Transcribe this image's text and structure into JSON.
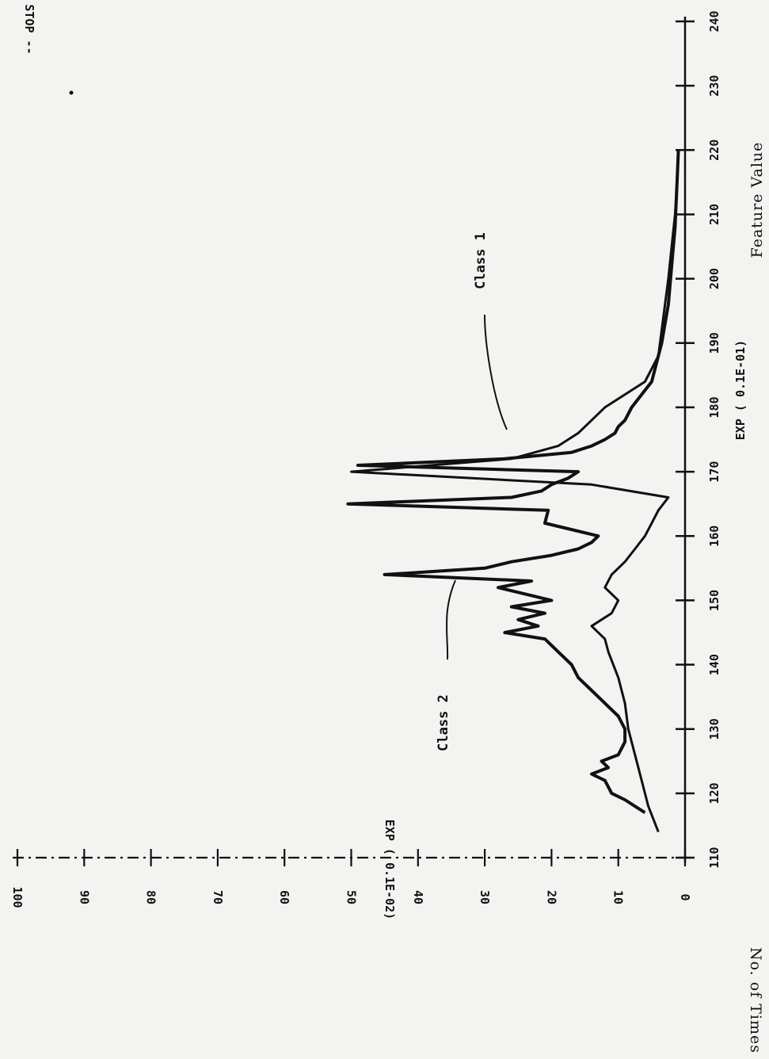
{
  "chart_data": {
    "type": "line",
    "title": "",
    "xlabel": "Feature Value",
    "ylabel": "No. of Times",
    "x_scale_note": "EXP ( 0.1E-01)",
    "y_scale_note": "EXP ( 0.1E-02)",
    "stop_label": "STOP --",
    "xlim": [
      110,
      240
    ],
    "ylim": [
      0,
      100
    ],
    "x_ticks": [
      "110",
      "120",
      "130",
      "140",
      "150",
      "160",
      "170",
      "180",
      "190",
      "200",
      "210",
      "220",
      "230",
      "240"
    ],
    "y_ticks": [
      "0",
      "10",
      "20",
      "30",
      "40",
      "50",
      "60",
      "70",
      "80",
      "90",
      "100"
    ],
    "grid": false,
    "colors": {
      "ink": "#111111",
      "paper": "#f3f3f1"
    },
    "series": [
      {
        "name": "Class 1",
        "x": [
          114,
          118,
          122,
          126,
          130,
          134,
          138,
          142,
          144,
          146,
          148,
          150,
          152,
          154,
          156,
          158,
          160,
          162,
          164,
          166,
          168,
          170,
          172,
          174,
          176,
          178,
          180,
          184,
          188,
          192,
          196,
          200,
          205,
          210,
          215,
          220
        ],
        "y": [
          4,
          5.5,
          6.5,
          7.5,
          8.5,
          9,
          10,
          11.5,
          12,
          14,
          11,
          10,
          12,
          11,
          9,
          7.5,
          6,
          5,
          4,
          2.5,
          14,
          50,
          26,
          19,
          16,
          14,
          12,
          6,
          4,
          3.5,
          3,
          2.5,
          2,
          1.5,
          1.2,
          1
        ]
      },
      {
        "name": "Class 2",
        "x": [
          117,
          119,
          120,
          122,
          123,
          124,
          125,
          126,
          128,
          130,
          132,
          134,
          136,
          138,
          140,
          142,
          144,
          145,
          146,
          147,
          148,
          149,
          150,
          151,
          152,
          153,
          154,
          155,
          156,
          157,
          158,
          159,
          160,
          162,
          164,
          165,
          166,
          167,
          168,
          169,
          170,
          171,
          172,
          173,
          174,
          175,
          176,
          177,
          178,
          180,
          184,
          190,
          196,
          202,
          208,
          215,
          220
        ],
        "y": [
          6,
          9,
          11,
          12,
          14,
          11.5,
          12.5,
          10,
          9,
          9,
          10,
          12,
          14,
          16,
          17,
          19,
          21,
          27,
          22,
          25,
          21,
          26,
          20,
          24,
          28,
          23,
          45,
          30,
          26,
          20,
          16,
          14,
          13,
          21,
          20.5,
          50.5,
          26,
          21.5,
          20,
          17.5,
          16,
          49,
          27,
          17,
          14,
          12,
          10.5,
          10,
          9,
          8,
          5,
          3.5,
          2.5,
          2,
          1.5,
          1.2,
          1
        ]
      }
    ],
    "annotations": [
      "Class 1",
      "Class 2"
    ]
  }
}
